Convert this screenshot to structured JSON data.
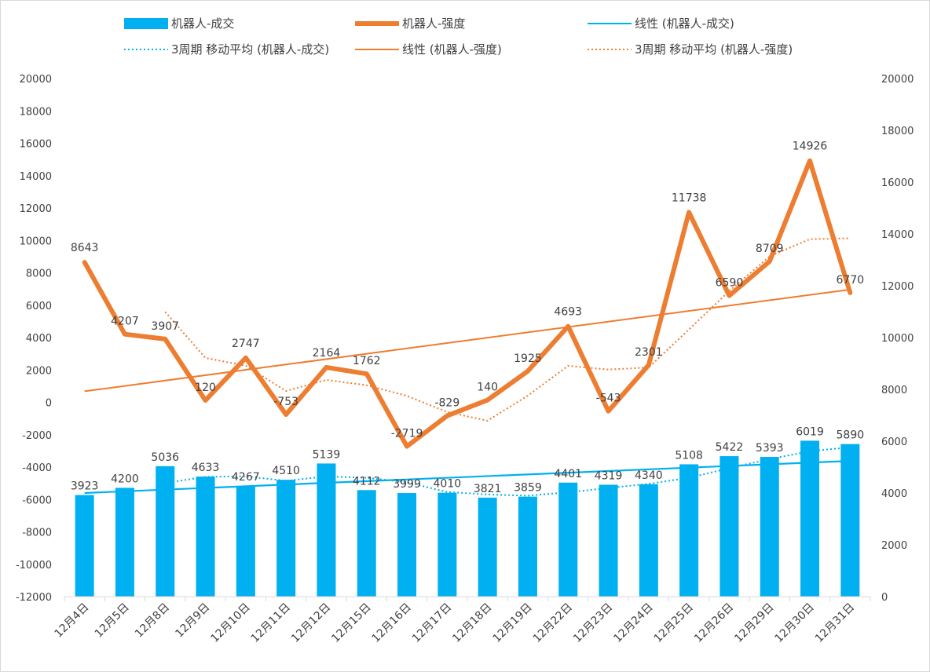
{
  "chart_data": {
    "type": "bar",
    "categories": [
      "12月4日",
      "12月5日",
      "12月8日",
      "12月9日",
      "12月10日",
      "12月11日",
      "12月12日",
      "12月15日",
      "12月16日",
      "12月17日",
      "12月18日",
      "12月19日",
      "12月22日",
      "12月23日",
      "12月24日",
      "12月25日",
      "12月26日",
      "12月29日",
      "12月30日",
      "12月31日"
    ],
    "series": [
      {
        "name": "机器人-成交",
        "type": "bar",
        "axis": "right",
        "color": "#00B0F0",
        "values": [
          3923,
          4200,
          5036,
          4633,
          4267,
          4510,
          5139,
          4112,
          3999,
          4010,
          3821,
          3859,
          4401,
          4319,
          4340,
          5108,
          5422,
          5393,
          6019,
          5890
        ]
      },
      {
        "name": "机器人-强度",
        "type": "line",
        "axis": "left",
        "color": "#ED7D31",
        "values": [
          8643,
          4207,
          3907,
          120,
          2747,
          -753,
          2164,
          1762,
          -2719,
          -829,
          140,
          1925,
          4693,
          -543,
          2301,
          11738,
          6590,
          8709,
          14926,
          6770
        ]
      }
    ],
    "legend": [
      {
        "label": "机器人-成交",
        "style": "bar",
        "color": "#00B0F0"
      },
      {
        "label": "机器人-强度",
        "style": "thick-line",
        "color": "#ED7D31"
      },
      {
        "label": "线性 (机器人-成交)",
        "style": "line",
        "color": "#00B0F0"
      },
      {
        "label": "3周期 移动平均 (机器人-成交)",
        "style": "dotted",
        "color": "#00B0F0"
      },
      {
        "label": "线性 (机器人-强度)",
        "style": "line",
        "color": "#ED7D31"
      },
      {
        "label": "3周期 移动平均 (机器人-强度)",
        "style": "dotted",
        "color": "#ED7D31"
      }
    ],
    "left_axis": {
      "min": -12000,
      "max": 20000,
      "step": 2000,
      "ticks": [
        "-12000",
        "-10000",
        "-8000",
        "-6000",
        "-4000",
        "-2000",
        "0",
        "2000",
        "4000",
        "6000",
        "8000",
        "10000",
        "12000",
        "14000",
        "16000",
        "18000",
        "20000"
      ]
    },
    "right_axis": {
      "min": 0,
      "max": 20000,
      "step": 2000,
      "ticks": [
        "0",
        "2000",
        "4000",
        "6000",
        "8000",
        "10000",
        "12000",
        "14000",
        "16000",
        "18000",
        "20000"
      ]
    },
    "legend_position": "top",
    "title": ""
  }
}
